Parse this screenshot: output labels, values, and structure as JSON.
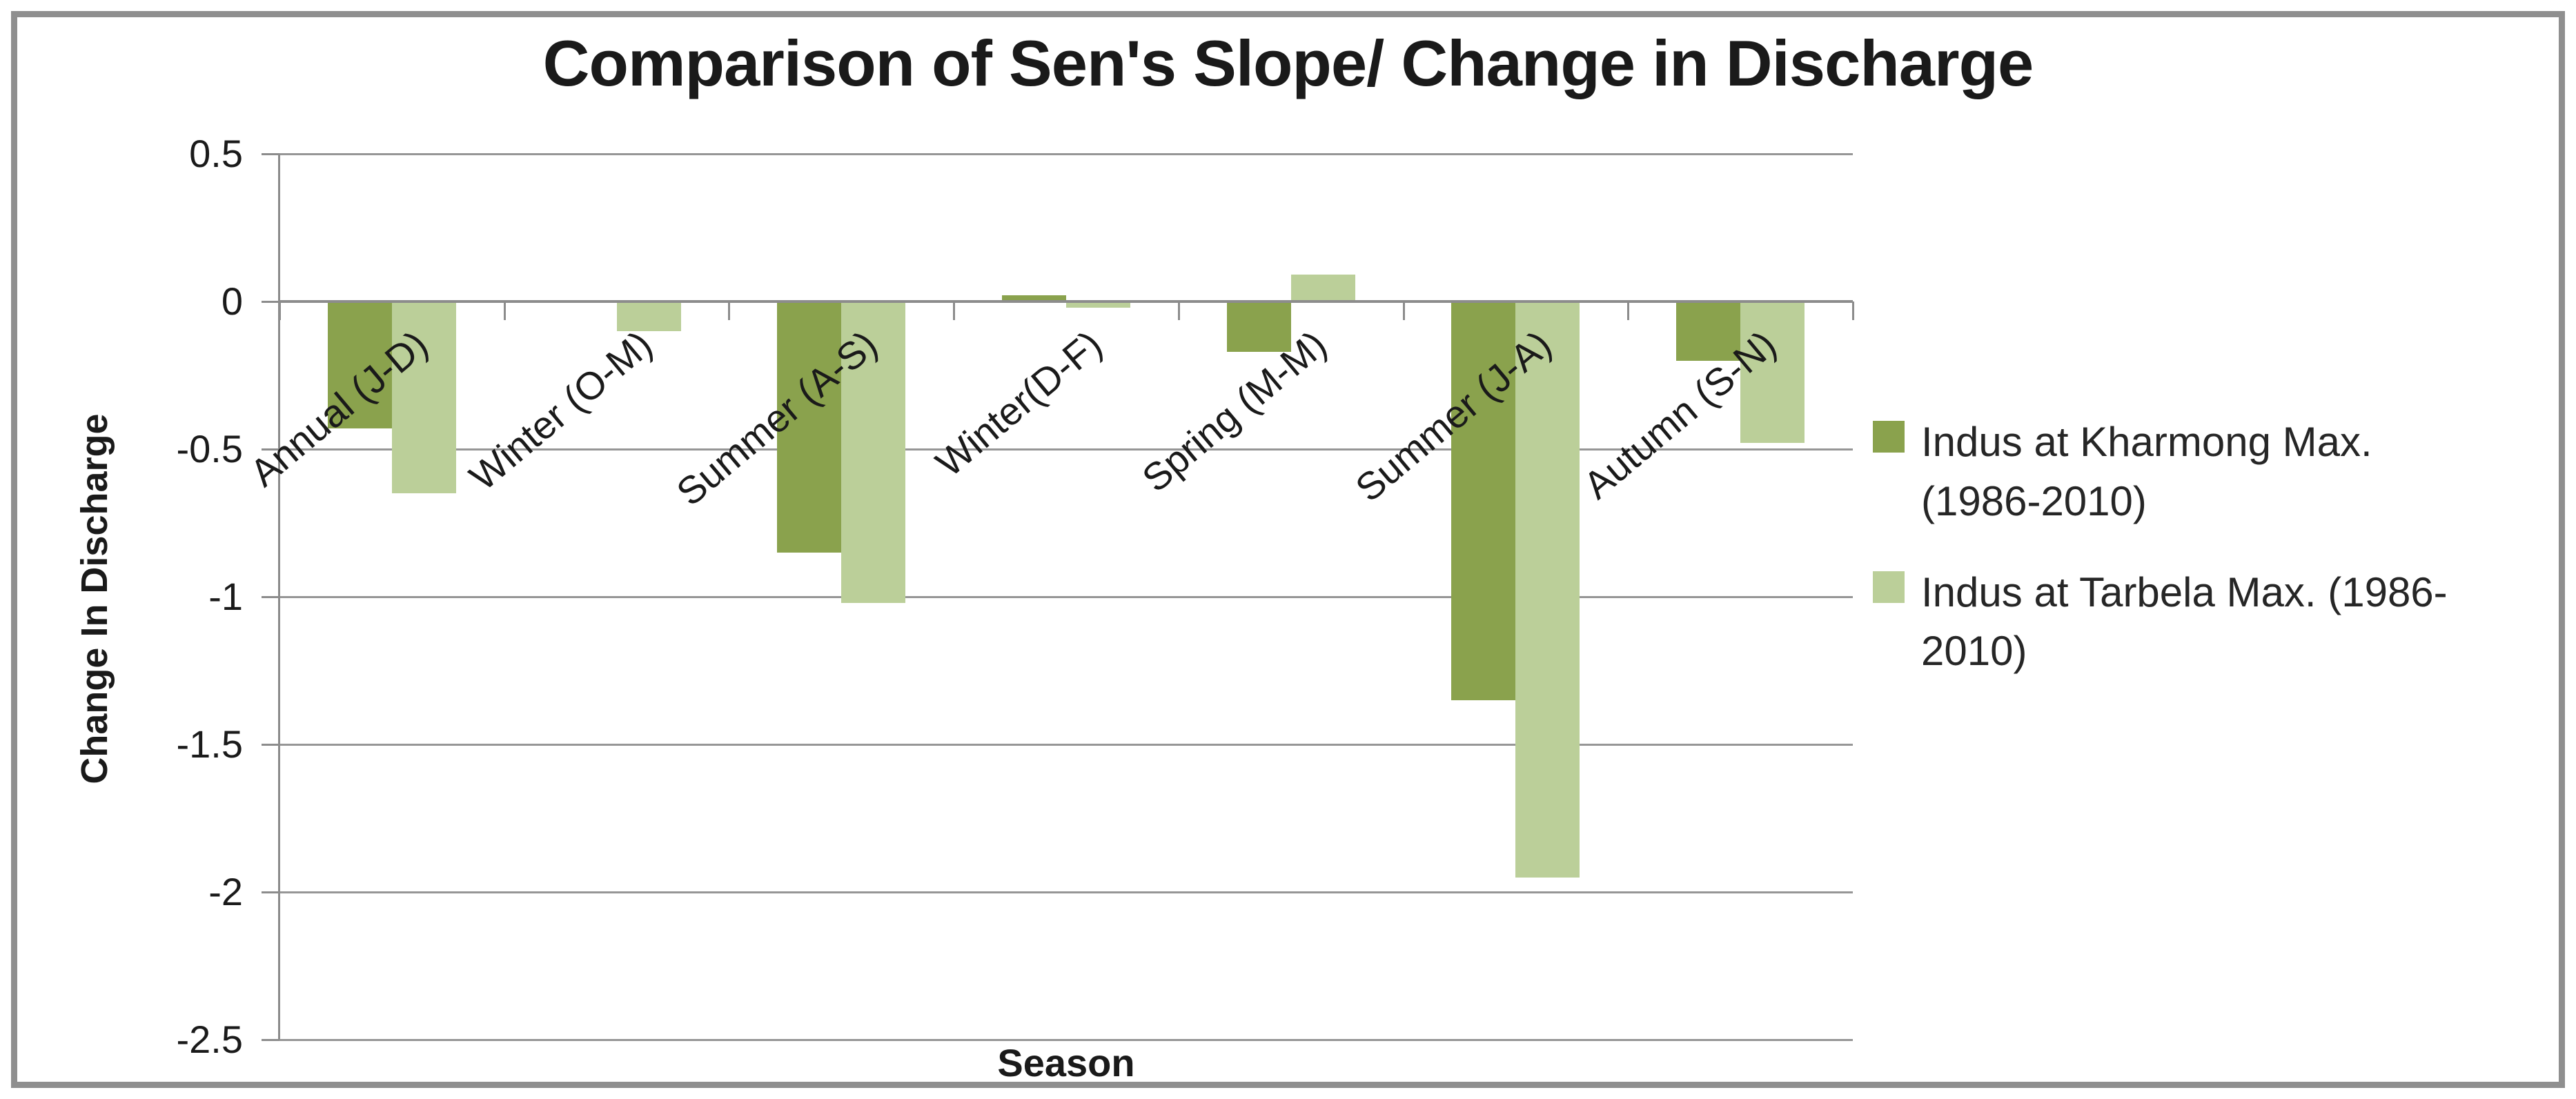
{
  "chart_data": {
    "type": "bar",
    "title": "Comparison of Sen's Slope/ Change in Discharge",
    "xlabel": "Season",
    "ylabel": "Change In Discharge",
    "categories": [
      "Annual (J-D)",
      "Winter (O-M)",
      "Summer (A-S)",
      "Winter(D-F)",
      "Spring (M-M)",
      "Summer (J-A)",
      "Autumn (S-N)"
    ],
    "series": [
      {
        "name": "Indus at Kharmong Max. (1986-2010)",
        "color": "#8aa24d",
        "values": [
          -0.43,
          0,
          -0.85,
          0.02,
          -0.17,
          -1.35,
          -0.2
        ]
      },
      {
        "name": "Indus at Tarbela Max. (1986-2010)",
        "color": "#bbcf99",
        "values": [
          -0.65,
          -0.1,
          -1.02,
          -0.02,
          0.09,
          -1.95,
          -0.48
        ]
      }
    ],
    "ylim": [
      -2.5,
      0.5
    ],
    "y_ticks": [
      0.5,
      0,
      -0.5,
      -1,
      -1.5,
      -2,
      -2.5
    ],
    "grid": true,
    "legend_position": "right"
  },
  "colors": {
    "gridline": "#969696",
    "axis": "#8c8c8c",
    "frame_border": "#8f8f8f",
    "text": "#1a1a1a"
  }
}
